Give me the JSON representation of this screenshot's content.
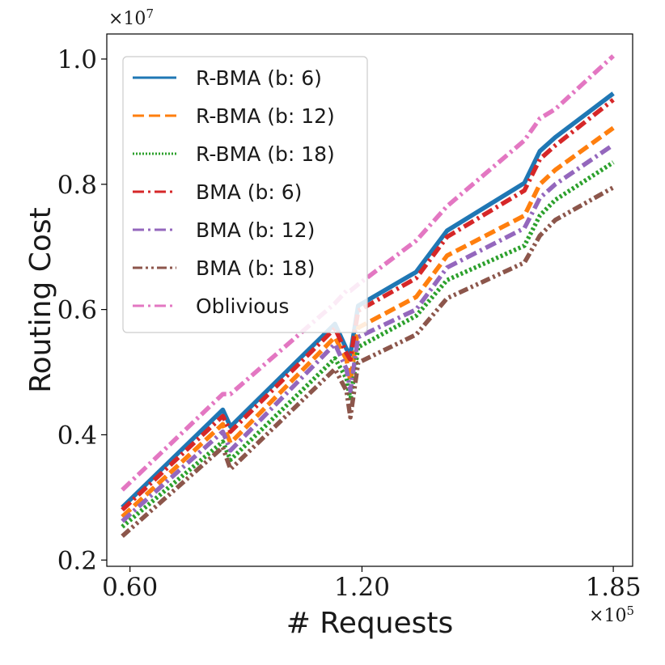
{
  "chart_data": {
    "type": "line",
    "xlabel": "# Requests",
    "ylabel": "Routing Cost",
    "x_multiplier_label": "×10^5",
    "y_multiplier_label": "×10^7",
    "xlim": [
      0.54,
      1.9
    ],
    "ylim": [
      0.19,
      1.04
    ],
    "x_ticks": [
      0.6,
      1.2,
      1.85
    ],
    "x_tick_labels": [
      "0.60",
      "1.20",
      "1.85"
    ],
    "y_ticks": [
      0.2,
      0.4,
      0.6,
      0.8,
      1.0
    ],
    "y_tick_labels": [
      "0.2",
      "0.4",
      "0.6",
      "0.8",
      "1.0"
    ],
    "grid": false,
    "legend_position": "top-left",
    "x": [
      0.58,
      0.84,
      0.86,
      1.13,
      1.16,
      1.17,
      1.19,
      1.34,
      1.42,
      1.62,
      1.66,
      1.7,
      1.85
    ],
    "series": [
      {
        "name": "R-BMA (b: 6)",
        "color": "#1f77b4",
        "style": "solid",
        "values": [
          0.284,
          0.44,
          0.413,
          0.577,
          0.537,
          0.528,
          0.606,
          0.66,
          0.726,
          0.802,
          0.853,
          0.875,
          0.945
        ]
      },
      {
        "name": "R-BMA (b: 12)",
        "color": "#ff7f0e",
        "style": "dashed",
        "values": [
          0.269,
          0.417,
          0.387,
          0.556,
          0.52,
          0.486,
          0.571,
          0.62,
          0.686,
          0.75,
          0.8,
          0.823,
          0.89
        ]
      },
      {
        "name": "R-BMA (b: 18)",
        "color": "#2ca02c",
        "style": "dotted",
        "values": [
          0.253,
          0.389,
          0.36,
          0.522,
          0.49,
          0.455,
          0.54,
          0.59,
          0.647,
          0.702,
          0.75,
          0.775,
          0.835
        ]
      },
      {
        "name": "BMA (b: 6)",
        "color": "#d62728",
        "style": "dashdot",
        "values": [
          0.28,
          0.43,
          0.405,
          0.57,
          0.53,
          0.52,
          0.598,
          0.65,
          0.716,
          0.79,
          0.84,
          0.862,
          0.935
        ]
      },
      {
        "name": "BMA (b: 12)",
        "color": "#9467bd",
        "style": "dashdot",
        "values": [
          0.262,
          0.405,
          0.375,
          0.545,
          0.505,
          0.47,
          0.556,
          0.6,
          0.667,
          0.73,
          0.778,
          0.8,
          0.863
        ]
      },
      {
        "name": "BMA (b: 18)",
        "color": "#8c564b",
        "style": "dashdotdot",
        "values": [
          0.238,
          0.38,
          0.345,
          0.505,
          0.47,
          0.428,
          0.515,
          0.56,
          0.618,
          0.675,
          0.718,
          0.743,
          0.795
        ]
      },
      {
        "name": "Oblivious",
        "color": "#e377c2",
        "style": "dashdot",
        "values": [
          0.312,
          0.465,
          0.465,
          0.61,
          0.63,
          0.63,
          0.64,
          0.71,
          0.765,
          0.87,
          0.905,
          0.92,
          1.005
        ]
      }
    ]
  }
}
